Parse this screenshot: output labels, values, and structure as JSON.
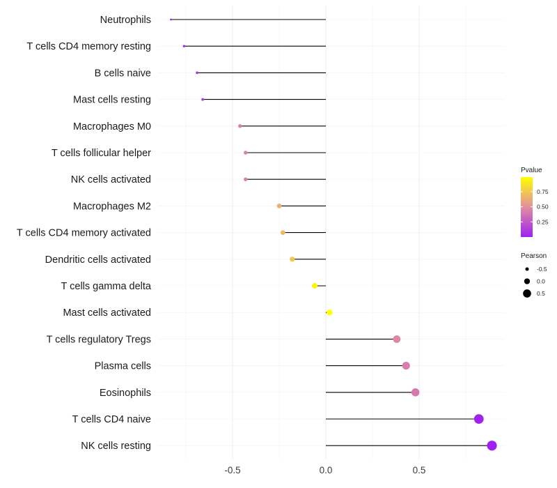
{
  "chart_data": {
    "type": "lollipop",
    "title": "",
    "xlabel": "",
    "ylabel": "",
    "xlim": [
      -0.88,
      1.01
    ],
    "x_ticks": [
      -0.5,
      0.0,
      0.5
    ],
    "x_tick_labels": [
      "-0.5",
      "0.0",
      "0.5"
    ],
    "grid": true,
    "categories": [
      "Neutrophils",
      "T cells CD4 memory resting",
      "B cells naive",
      "Mast cells resting",
      "Macrophages M0",
      "T cells follicular helper",
      "NK cells activated",
      "Macrophages M2",
      "T cells CD4 memory activated",
      "Dendritic cells activated",
      "T cells gamma delta",
      "Mast cells activated",
      "T cells regulatory  Tregs ",
      "Plasma cells",
      "Eosinophils",
      "T cells CD4 naive",
      "NK cells resting"
    ],
    "pearson": [
      -0.83,
      -0.76,
      -0.69,
      -0.66,
      -0.46,
      -0.43,
      -0.43,
      -0.25,
      -0.23,
      -0.18,
      -0.06,
      0.02,
      0.38,
      0.43,
      0.48,
      0.82,
      0.89
    ],
    "pvalue": [
      0.01,
      0.02,
      0.1,
      0.15,
      0.42,
      0.45,
      0.45,
      0.65,
      0.68,
      0.74,
      0.95,
      0.99,
      0.46,
      0.42,
      0.4,
      0.01,
      0.0
    ],
    "legend": {
      "color_title": "Pvalue",
      "color_ticks": [
        0.25,
        0.5,
        0.75
      ],
      "color_tick_labels": [
        "0.25",
        "0.50",
        "0.75"
      ],
      "color_range": [
        0.0,
        0.99
      ],
      "size_title": "Pearson",
      "size_values": [
        -0.5,
        0.0,
        0.5
      ],
      "size_labels": [
        "-0.5",
        "0.0",
        "0.5"
      ],
      "placement": "right"
    },
    "colors": {
      "low": "#a020f0",
      "mid": "#e08fa0",
      "high": "#ffff00",
      "segment": "#000000",
      "grid": "#ebebeb"
    }
  }
}
